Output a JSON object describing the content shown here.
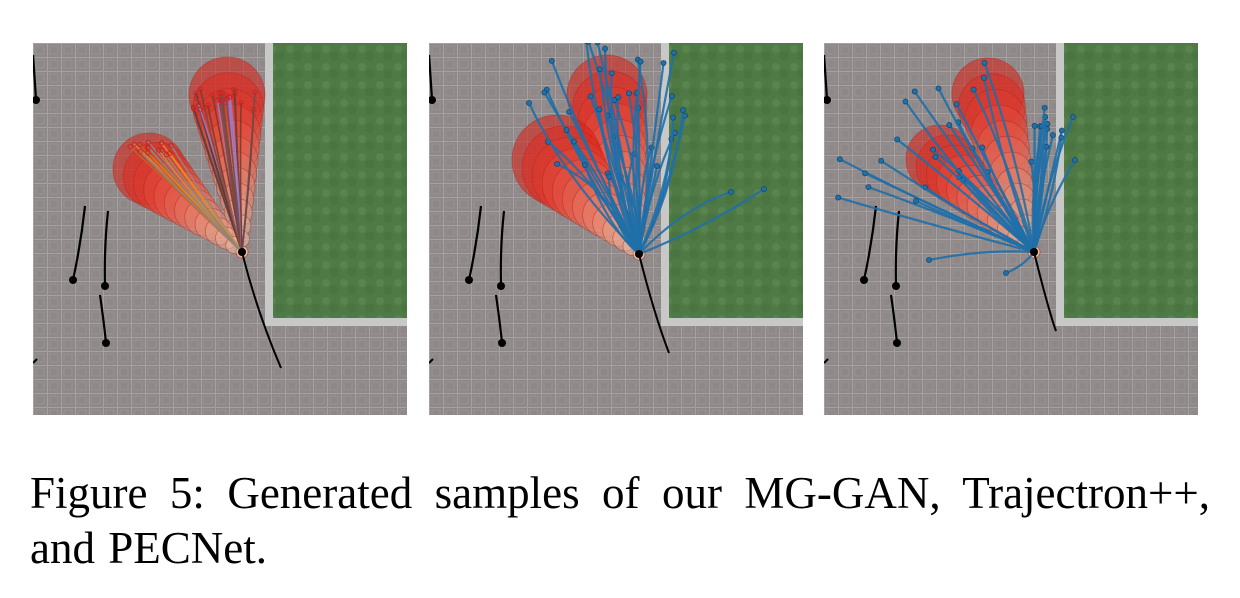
{
  "figure": {
    "caption": "Figure 5:  Generated samples of our MG-GAN, Trajectron++, and PECNet.",
    "panels": [
      {
        "method": "MG-GAN",
        "sample_style": "multicolor-bundle"
      },
      {
        "method": "Trajectron++",
        "sample_style": "blue-spread"
      },
      {
        "method": "PECNet",
        "sample_style": "blue-fan"
      }
    ],
    "colors": {
      "pavement": "#8e8888",
      "tile_line": "#a7a1a1",
      "grass": "#4f7a45",
      "curb": "#c8c8c8",
      "density": "#e0241a",
      "density_light": "#f4b9a0",
      "trajectory_blue": "#1f6fa8",
      "history": "#000000"
    }
  }
}
